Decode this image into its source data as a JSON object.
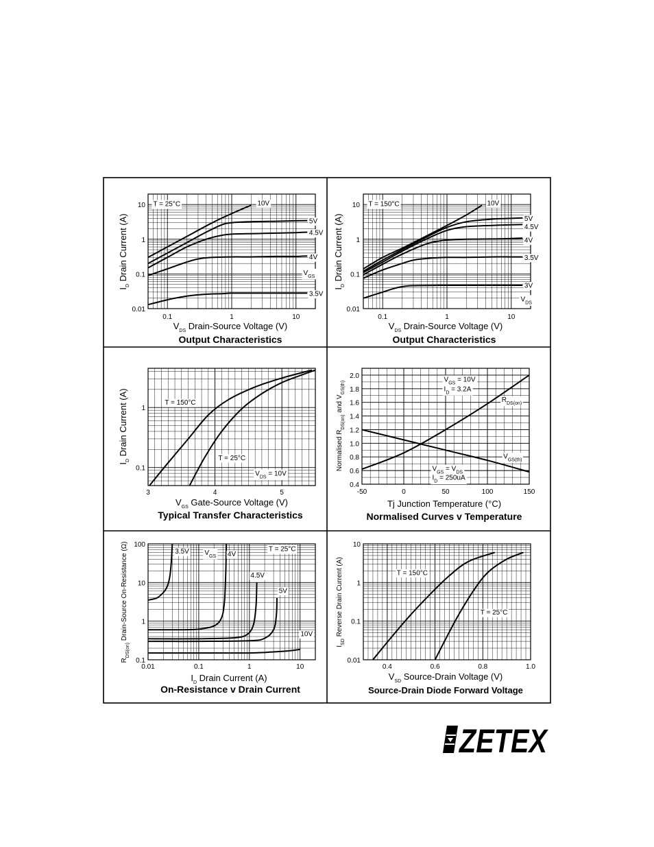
{
  "brand": {
    "logo_text": "ZETEX"
  },
  "chart_data": [
    {
      "id": "oc25",
      "type": "line",
      "title": "Output Characteristics",
      "xlabel": {
        "main": "V",
        "sub": "DS",
        "rest": " Drain-Source Voltage (V)"
      },
      "ylabel": {
        "main": "I",
        "sub": "D",
        "rest": " Drain Current (A)"
      },
      "xscale": "log",
      "yscale": "log",
      "xlim": [
        0.05,
        20
      ],
      "ylim": [
        0.01,
        20
      ],
      "xticks": [
        0.1,
        1,
        10
      ],
      "xtick_labels": [
        "0.1",
        "1",
        "10"
      ],
      "yticks": [
        0.01,
        0.1,
        1,
        10
      ],
      "ytick_labels": [
        "0.01",
        "0.1",
        "1",
        "10"
      ],
      "grid": true,
      "annotations": [
        {
          "text": "T = 25°C",
          "at": [
            0.06,
            10.5
          ]
        },
        {
          "text": "V",
          "sub": "GS",
          "at": [
            13,
            0.11
          ]
        }
      ],
      "series": [
        {
          "name": "10V",
          "x": [
            0.05,
            0.1,
            0.2,
            0.5,
            1,
            1.6,
            2
          ],
          "y": [
            0.3,
            0.6,
            1.2,
            3,
            5.5,
            8,
            9.5
          ],
          "label_at": [
            2.5,
            11
          ]
        },
        {
          "name": "5V",
          "x": [
            0.05,
            0.1,
            0.2,
            0.4,
            0.7,
            1,
            2,
            5,
            10,
            15
          ],
          "y": [
            0.2,
            0.4,
            0.8,
            1.6,
            2.6,
            3.0,
            3.2,
            3.3,
            3.4,
            3.45
          ],
          "label_at": [
            16,
            3.4
          ]
        },
        {
          "name": "4.5V",
          "x": [
            0.05,
            0.1,
            0.2,
            0.4,
            0.7,
            1,
            2,
            5,
            10,
            15
          ],
          "y": [
            0.15,
            0.3,
            0.6,
            1.0,
            1.3,
            1.4,
            1.45,
            1.5,
            1.55,
            1.6
          ],
          "label_at": [
            16,
            1.55
          ]
        },
        {
          "name": "4V",
          "x": [
            0.05,
            0.1,
            0.2,
            0.3,
            0.5,
            1,
            2,
            5,
            10,
            15
          ],
          "y": [
            0.09,
            0.14,
            0.22,
            0.27,
            0.3,
            0.31,
            0.31,
            0.32,
            0.32,
            0.33
          ],
          "label_at": [
            16,
            0.31
          ]
        },
        {
          "name": "3.5V",
          "x": [
            0.05,
            0.1,
            0.2,
            0.4,
            0.7,
            1,
            2,
            5,
            10,
            15
          ],
          "y": [
            0.013,
            0.018,
            0.023,
            0.026,
            0.027,
            0.028,
            0.028,
            0.028,
            0.028,
            0.028
          ],
          "label_at": [
            16,
            0.027
          ]
        }
      ]
    },
    {
      "id": "oc150",
      "type": "line",
      "title": "Output Characteristics",
      "xlabel": {
        "main": "V",
        "sub": "DS",
        "rest": " Drain-Source Voltage (V)"
      },
      "ylabel": {
        "main": "I",
        "sub": "D",
        "rest": " Drain Current (A)"
      },
      "xscale": "log",
      "yscale": "log",
      "xlim": [
        0.05,
        20
      ],
      "ylim": [
        0.01,
        20
      ],
      "xticks": [
        0.1,
        1,
        10
      ],
      "xtick_labels": [
        "0.1",
        "1",
        "10"
      ],
      "yticks": [
        0.01,
        0.1,
        1,
        10
      ],
      "ytick_labels": [
        "0.01",
        "0.1",
        "1",
        "10"
      ],
      "grid": true,
      "annotations": [
        {
          "text": "T = 150°C",
          "at": [
            0.06,
            10.5
          ]
        },
        {
          "text": "V",
          "sub": "DS",
          "at": [
            14,
            0.019
          ]
        }
      ],
      "series": [
        {
          "name": "10V",
          "x": [
            0.05,
            0.1,
            0.2,
            0.5,
            1,
            2,
            3.5
          ],
          "y": [
            0.14,
            0.3,
            0.55,
            1.3,
            2.5,
            5,
            9.5
          ],
          "label_at": [
            4.2,
            11
          ]
        },
        {
          "name": "5V",
          "x": [
            0.05,
            0.1,
            0.2,
            0.5,
            1,
            2,
            5,
            10,
            15
          ],
          "y": [
            0.12,
            0.25,
            0.5,
            1.2,
            2.2,
            3.2,
            3.8,
            4.0,
            4.1
          ],
          "label_at": [
            16,
            4.0
          ]
        },
        {
          "name": "4.5V",
          "x": [
            0.05,
            0.1,
            0.2,
            0.5,
            1,
            2,
            5,
            10,
            15
          ],
          "y": [
            0.11,
            0.22,
            0.45,
            1.05,
            1.8,
            2.3,
            2.5,
            2.6,
            2.65
          ],
          "label_at": [
            16,
            2.3
          ]
        },
        {
          "name": "4V",
          "x": [
            0.05,
            0.1,
            0.2,
            0.5,
            1,
            2,
            5,
            10,
            15
          ],
          "y": [
            0.095,
            0.19,
            0.37,
            0.75,
            0.95,
            1.0,
            1.02,
            1.05,
            1.08
          ],
          "label_at": [
            16,
            0.95
          ]
        },
        {
          "name": "3.5V",
          "x": [
            0.05,
            0.1,
            0.2,
            0.3,
            0.5,
            1,
            2,
            5,
            10,
            15
          ],
          "y": [
            0.075,
            0.13,
            0.2,
            0.25,
            0.28,
            0.3,
            0.3,
            0.31,
            0.31,
            0.31
          ],
          "label_at": [
            16,
            0.3
          ]
        },
        {
          "name": "3V",
          "x": [
            0.05,
            0.1,
            0.15,
            0.2,
            0.3,
            1,
            5,
            10,
            15
          ],
          "y": [
            0.02,
            0.03,
            0.038,
            0.043,
            0.046,
            0.047,
            0.047,
            0.047,
            0.047
          ],
          "label_at": [
            16,
            0.047
          ]
        }
      ]
    },
    {
      "id": "transfer",
      "type": "line",
      "title": "Typical Transfer Characteristics",
      "xlabel": {
        "main": "V",
        "sub": "GS",
        "rest": " Gate-Source Voltage (V)"
      },
      "ylabel": {
        "main": "I",
        "sub": "D",
        "rest": " Drain Current (A)"
      },
      "xscale": "linear",
      "yscale": "log",
      "xlim": [
        3,
        5.5
      ],
      "ylim": [
        0.05,
        4.5
      ],
      "xticks": [
        3,
        4,
        5
      ],
      "xtick_labels": [
        "3",
        "4",
        "5"
      ],
      "yticks": [
        0.1,
        1
      ],
      "ytick_labels": [
        "0.1",
        "1"
      ],
      "grid": true,
      "annotations": [
        {
          "text": "V",
          "sub": "DS",
          "rest": " = 10V",
          "at": [
            4.6,
            0.08
          ]
        }
      ],
      "series": [
        {
          "name": "T = 150°C",
          "x": [
            3.02,
            3.3,
            3.6,
            3.9,
            4.2,
            4.6,
            5.0,
            5.45
          ],
          "y": [
            0.05,
            0.12,
            0.3,
            0.75,
            1.35,
            2.2,
            3.1,
            4.2
          ],
          "label_at": [
            3.25,
            1.22
          ]
        },
        {
          "name": "T = 25°C",
          "x": [
            3.62,
            3.85,
            4.1,
            4.4,
            4.7,
            5.0,
            5.3,
            5.5
          ],
          "y": [
            0.05,
            0.15,
            0.4,
            0.95,
            1.7,
            2.6,
            3.5,
            4.2
          ],
          "label_at": [
            4.05,
            0.145
          ]
        }
      ]
    },
    {
      "id": "temp",
      "type": "line",
      "title": "Normalised Curves v Temperature",
      "xlabel": {
        "main": "Tj",
        "sub": "",
        "rest": "  Junction Temperature (°C)"
      },
      "ylabel": {
        "main": "Normalised R",
        "sub": "DS(on)",
        "rest": " and V",
        "sub2": "GS(th)"
      },
      "xscale": "linear",
      "yscale": "linear",
      "xlim": [
        -50,
        150
      ],
      "ylim": [
        0.4,
        2.1
      ],
      "xticks": [
        -50,
        0,
        50,
        100,
        150
      ],
      "xtick_labels": [
        "-50",
        "0",
        "50",
        "100",
        "150"
      ],
      "yticks": [
        0.4,
        0.6,
        0.8,
        1.0,
        1.2,
        1.4,
        1.6,
        1.8,
        2.0
      ],
      "ytick_labels": [
        "0.4",
        "0.6",
        "0.8",
        "1.0",
        "1.2",
        "1.4",
        "1.6",
        "1.8",
        "2.0"
      ],
      "grid": true,
      "annotations": [
        {
          "text": "V",
          "sub": "GS",
          "rest": " = 10V",
          "at": [
            48,
            1.94
          ]
        },
        {
          "text": "I",
          "sub": "D",
          "rest": " = 3.2A",
          "at": [
            48,
            1.8
          ]
        },
        {
          "text": "V",
          "sub": "GS",
          "rest": " = V",
          "sub2": "DS",
          "at": [
            34,
            0.63
          ]
        },
        {
          "text": "I",
          "sub": "D",
          "rest": " = 250uA",
          "at": [
            34,
            0.5
          ]
        }
      ],
      "series": [
        {
          "name": "R",
          "name_sub": "DS(on)",
          "x": [
            -50,
            0,
            50,
            100,
            150
          ],
          "y": [
            0.62,
            0.86,
            1.2,
            1.58,
            2.0
          ],
          "label_at": [
            117,
            1.64
          ]
        },
        {
          "name": "V",
          "name_sub": "GS(th)",
          "x": [
            -50,
            0,
            50,
            100,
            150
          ],
          "y": [
            1.2,
            1.05,
            0.9,
            0.75,
            0.58
          ],
          "label_at": [
            119,
            0.81
          ]
        }
      ]
    },
    {
      "id": "ron",
      "type": "line",
      "title": "On-Resistance v Drain Current",
      "xlabel": {
        "main": "I",
        "sub": "D",
        "rest": " Drain Current (A)"
      },
      "ylabel": {
        "main": "R",
        "sub": "DS(on)",
        "rest": " Drain-Source On-Resistance (Ω)"
      },
      "xscale": "log",
      "yscale": "log",
      "xlim": [
        0.01,
        20
      ],
      "ylim": [
        0.1,
        100
      ],
      "xticks": [
        0.01,
        0.1,
        1,
        10
      ],
      "xtick_labels": [
        "0.01",
        "0.1",
        "1",
        "10"
      ],
      "yticks": [
        0.1,
        1,
        10,
        100
      ],
      "ytick_labels": [
        "0.1",
        "1",
        "10",
        "100"
      ],
      "grid": true,
      "annotations": [
        {
          "text": "V",
          "sub": "GS",
          "at": [
            0.13,
            60
          ]
        },
        {
          "text": "T = 25°C",
          "at": [
            2.4,
            75
          ]
        }
      ],
      "series": [
        {
          "name": "3.5V",
          "x": [
            0.01,
            0.015,
            0.02,
            0.024,
            0.027,
            0.029,
            0.03
          ],
          "y": [
            3.5,
            4.0,
            5.5,
            8,
            15,
            40,
            100
          ],
          "label_at": [
            0.034,
            65
          ]
        },
        {
          "name": "4V",
          "x": [
            0.01,
            0.05,
            0.1,
            0.2,
            0.28,
            0.32,
            0.34,
            0.35
          ],
          "y": [
            0.6,
            0.6,
            0.62,
            0.75,
            1.2,
            3,
            15,
            100
          ],
          "label_at": [
            0.37,
            55
          ]
        },
        {
          "name": "4.5V",
          "x": [
            0.01,
            0.1,
            0.5,
            0.9,
            1.2,
            1.35,
            1.4
          ],
          "y": [
            0.35,
            0.35,
            0.37,
            0.45,
            0.8,
            2.5,
            10
          ],
          "label_at": [
            1.05,
            15.5
          ]
        },
        {
          "name": "5V",
          "x": [
            0.01,
            0.1,
            1,
            2,
            3,
            3.4,
            3.5
          ],
          "y": [
            0.3,
            0.3,
            0.31,
            0.36,
            0.6,
            1.4,
            4
          ],
          "label_at": [
            3.8,
            6.2
          ]
        },
        {
          "name": "10V",
          "x": [
            0.01,
            0.1,
            1,
            3,
            6,
            10
          ],
          "y": [
            0.15,
            0.15,
            0.15,
            0.16,
            0.17,
            0.185
          ],
          "label_at": [
            10.2,
            0.47
          ]
        }
      ]
    },
    {
      "id": "diode",
      "type": "line",
      "title": "Source-Drain Diode Forward Voltage",
      "xlabel": {
        "main": "V",
        "sub": "SD",
        "rest": " Source-Drain Voltage (V)"
      },
      "ylabel": {
        "main": "I",
        "sub": "SD",
        "rest": " Reverse Drain Current (A)"
      },
      "xscale": "linear",
      "yscale": "log",
      "xlim": [
        0.3,
        1.0
      ],
      "ylim": [
        0.01,
        10
      ],
      "xticks": [
        0.4,
        0.6,
        0.8,
        1.0
      ],
      "xtick_labels": [
        "0.4",
        "0.6",
        "0.8",
        "1.0"
      ],
      "yticks": [
        0.01,
        0.1,
        1,
        10
      ],
      "ytick_labels": [
        "0.01",
        "0.1",
        "1",
        "10"
      ],
      "grid": true,
      "annotations": [],
      "series": [
        {
          "name": "T = 150°C",
          "x": [
            0.34,
            0.42,
            0.5,
            0.58,
            0.66,
            0.74,
            0.85
          ],
          "y": [
            0.01,
            0.04,
            0.15,
            0.5,
            1.5,
            3.5,
            6
          ],
          "label_at": [
            0.44,
            1.8
          ]
        },
        {
          "name": "T = 25°C",
          "x": [
            0.6,
            0.65,
            0.7,
            0.76,
            0.82,
            0.9,
            0.97
          ],
          "y": [
            0.01,
            0.04,
            0.15,
            0.6,
            1.8,
            4,
            6
          ],
          "label_at": [
            0.79,
            0.17
          ]
        }
      ]
    }
  ]
}
